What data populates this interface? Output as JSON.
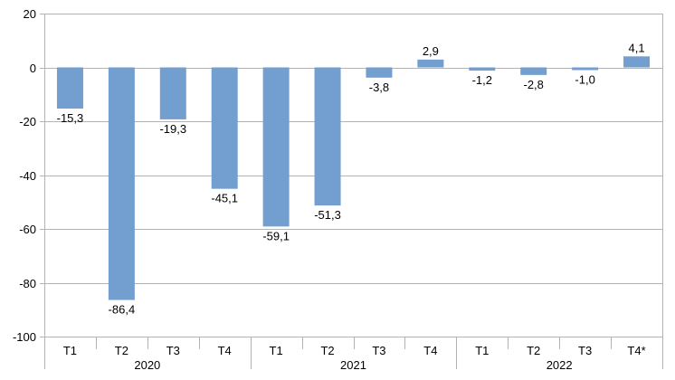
{
  "chart_data": {
    "type": "bar",
    "categories": [
      "T1",
      "T2",
      "T3",
      "T4",
      "T1",
      "T2",
      "T3",
      "T4",
      "T1",
      "T2",
      "T3",
      "T4*"
    ],
    "groups": [
      {
        "label": "2020",
        "count": 4
      },
      {
        "label": "2021",
        "count": 4
      },
      {
        "label": "2022",
        "count": 4
      }
    ],
    "values": [
      -15.3,
      -86.4,
      -19.3,
      -45.1,
      -59.1,
      -51.3,
      -3.8,
      2.9,
      -1.2,
      -2.8,
      -1.0,
      4.1
    ],
    "data_labels": [
      "-15,3",
      "-86,4",
      "-19,3",
      "-45,1",
      "-59,1",
      "-51,3",
      "-3,8",
      "2,9",
      "-1,2",
      "-2,8",
      "-1,0",
      "4,1"
    ],
    "title": "",
    "xlabel": "",
    "ylabel": "",
    "ylim": [
      -100,
      20
    ],
    "yticks": [
      20,
      0,
      -20,
      -40,
      -60,
      -80,
      -100
    ],
    "grid": true,
    "legend": "none",
    "bar_color": "#729fcf",
    "grid_color": "#b3b3b3"
  }
}
